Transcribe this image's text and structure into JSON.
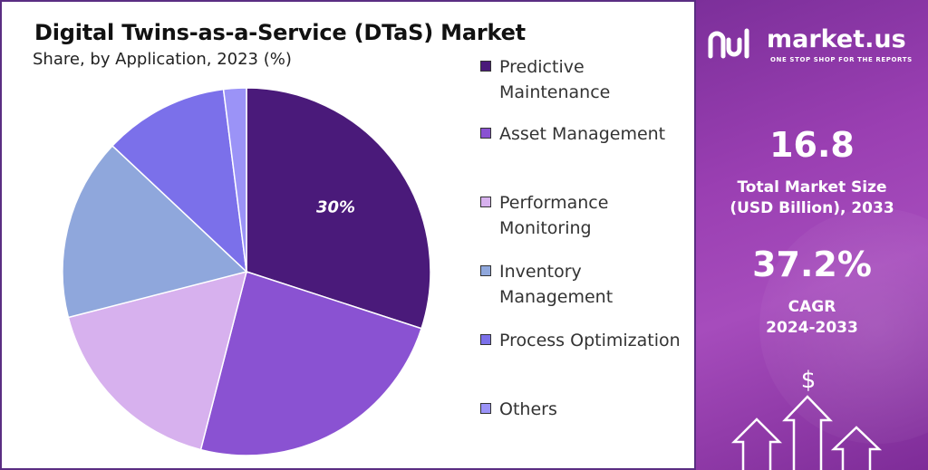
{
  "chart_data": {
    "type": "pie",
    "title": "Digital Twins-as-a-Service (DTaS) Market",
    "subtitle": "Share, by Application, 2023 (%)",
    "slices": [
      {
        "label": "Predictive Maintenance",
        "value": 30,
        "color": "#4a1a7a",
        "data_label": "30%"
      },
      {
        "label": "Asset Management",
        "value": 24,
        "color": "#8a52d2",
        "data_label": ""
      },
      {
        "label": "Performance Monitoring",
        "value": 17,
        "color": "#d7b1ee",
        "data_label": ""
      },
      {
        "label": "Inventory Management",
        "value": 16,
        "color": "#8fa7dc",
        "data_label": ""
      },
      {
        "label": "Process Optimization",
        "value": 11,
        "color": "#7b70ea",
        "data_label": ""
      },
      {
        "label": "Others",
        "value": 2,
        "color": "#9b93f7",
        "data_label": ""
      }
    ],
    "legend_position": "right"
  },
  "legend": {
    "items": [
      {
        "line1": "Predictive",
        "line2": "Maintenance",
        "color": "#4a1a7a"
      },
      {
        "line1": "Asset Management",
        "line2": "",
        "color": "#8a52d2"
      },
      {
        "line1": "Performance",
        "line2": "Monitoring",
        "color": "#d7b1ee"
      },
      {
        "line1": "Inventory",
        "line2": "Management",
        "color": "#8fa7dc"
      },
      {
        "line1": "Process Optimization",
        "line2": "",
        "color": "#7b70ea"
      },
      {
        "line1": "Others",
        "line2": "",
        "color": "#9b93f7"
      }
    ]
  },
  "sidebar": {
    "brand": "market.us",
    "tagline": "ONE STOP SHOP FOR THE REPORTS",
    "market_size_value": "16.8",
    "market_size_label_1": "Total Market Size",
    "market_size_label_2": "(USD Billion), 2033",
    "cagr_value": "37.2%",
    "cagr_label_1": "CAGR",
    "cagr_label_2": "2024-2033",
    "icon": "dollar-growth-arrows-icon",
    "accent_color": "#9a3fb2"
  }
}
